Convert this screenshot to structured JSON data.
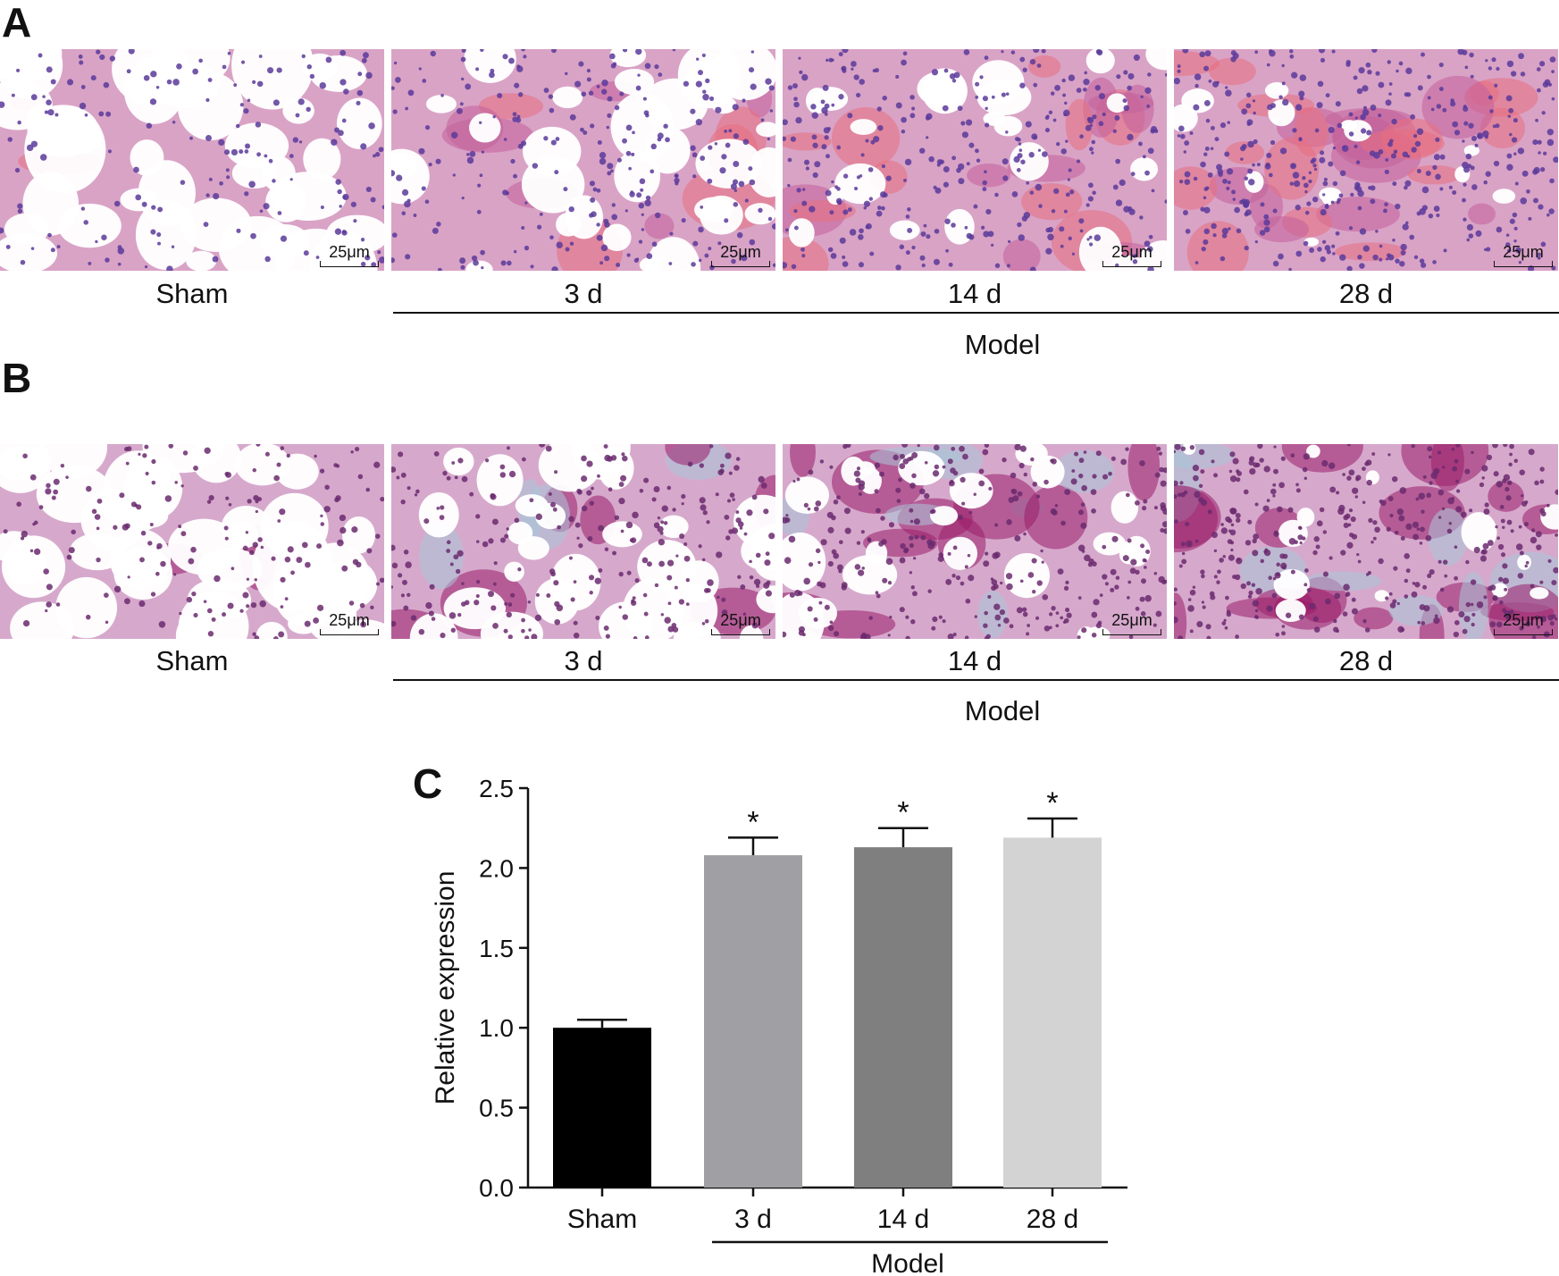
{
  "panels": {
    "A": {
      "letter": "A",
      "scale_label": "25μm",
      "conditions": [
        "Sham",
        "3 d",
        "14 d",
        "28 d"
      ],
      "group_label": "Model",
      "stain": "H&E"
    },
    "B": {
      "letter": "B",
      "scale_label": "25μm",
      "conditions": [
        "Sham",
        "3 d",
        "14 d",
        "28 d"
      ],
      "group_label": "Model",
      "stain": "Masson"
    },
    "C": {
      "letter": "C"
    }
  },
  "colors": {
    "he_bg": "#d9a3c6",
    "he_cell": "#5a3a9a",
    "he_rbc": "#e8707f",
    "masson_bg": "#d6a9cc",
    "masson_cell": "#6b2a6e",
    "masson_deep": "#9b1d6a",
    "masson_collagen": "#a9c7d8"
  },
  "chart_data": {
    "type": "bar",
    "categories": [
      "Sham",
      "3 d",
      "14 d",
      "28 d"
    ],
    "values": [
      1.0,
      2.08,
      2.13,
      2.19
    ],
    "errors": [
      0.05,
      0.11,
      0.12,
      0.12
    ],
    "bar_colors": [
      "#000000",
      "#a0a0a4",
      "#7f7f7f",
      "#d3d3d3"
    ],
    "significance": [
      "",
      "*",
      "*",
      "*"
    ],
    "ylabel": "Relative expression",
    "ylim": [
      0,
      2.5
    ],
    "yticks": [
      "0.0",
      "0.5",
      "1.0",
      "1.5",
      "2.0",
      "2.5"
    ],
    "group_label": "Model"
  }
}
